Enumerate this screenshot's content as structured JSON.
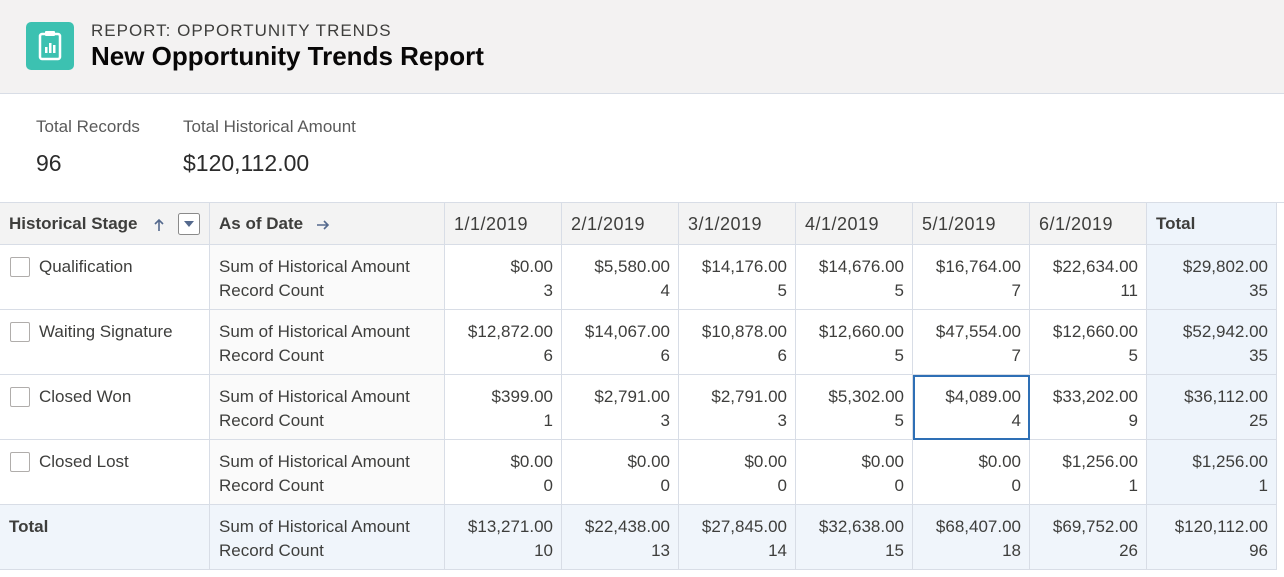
{
  "header": {
    "eyebrow": "REPORT: OPPORTUNITY TRENDS",
    "title": "New Opportunity Trends Report"
  },
  "summary": [
    {
      "label": "Total Records",
      "value": "96"
    },
    {
      "label": "Total Historical Amount",
      "value": "$120,112.00"
    }
  ],
  "table": {
    "columns": [
      "Historical Stage",
      "As of Date",
      "1/1/2019",
      "2/1/2019",
      "3/1/2019",
      "4/1/2019",
      "5/1/2019",
      "6/1/2019",
      "Total"
    ],
    "measures": [
      "Sum of Historical Amount",
      "Record Count"
    ],
    "rows": [
      {
        "stage": "Qualification",
        "amounts": [
          "$0.00",
          "$5,580.00",
          "$14,176.00",
          "$14,676.00",
          "$16,764.00",
          "$22,634.00",
          "$29,802.00"
        ],
        "counts": [
          3,
          4,
          5,
          5,
          7,
          11,
          35
        ]
      },
      {
        "stage": "Waiting Signature",
        "amounts": [
          "$12,872.00",
          "$14,067.00",
          "$10,878.00",
          "$12,660.00",
          "$47,554.00",
          "$12,660.00",
          "$52,942.00"
        ],
        "counts": [
          6,
          6,
          6,
          5,
          7,
          5,
          35
        ]
      },
      {
        "stage": "Closed Won",
        "amounts": [
          "$399.00",
          "$2,791.00",
          "$2,791.00",
          "$5,302.00",
          "$4,089.00",
          "$33,202.00",
          "$36,112.00"
        ],
        "counts": [
          1,
          3,
          3,
          5,
          4,
          9,
          25
        ]
      },
      {
        "stage": "Closed Lost",
        "amounts": [
          "$0.00",
          "$0.00",
          "$0.00",
          "$0.00",
          "$0.00",
          "$1,256.00",
          "$1,256.00"
        ],
        "counts": [
          0,
          0,
          0,
          0,
          0,
          1,
          1
        ]
      }
    ],
    "total": {
      "stage": "Total",
      "amounts": [
        "$13,271.00",
        "$22,438.00",
        "$27,845.00",
        "$32,638.00",
        "$68,407.00",
        "$69,752.00",
        "$120,112.00"
      ],
      "counts": [
        10,
        13,
        14,
        15,
        18,
        26,
        96
      ]
    }
  }
}
